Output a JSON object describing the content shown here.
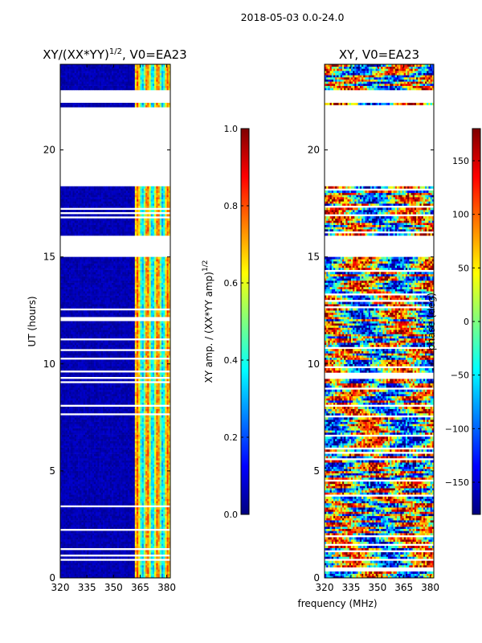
{
  "figure_title": "2018-05-03 0.0-24.0",
  "shared_xlabel": "frequency (MHz)",
  "colors": {
    "jet_stops": [
      "#00007f",
      "#0000ff",
      "#007fff",
      "#00ffff",
      "#7fff7f",
      "#ffff00",
      "#ff7f00",
      "#ff0000",
      "#7f0000"
    ]
  },
  "chart_data": [
    {
      "type": "heatmap",
      "title_main": "XY/(XX*YY)",
      "title_sup": "1/2",
      "title_rest": ", V0=EA23",
      "xlabel": "",
      "ylabel": "UT (hours)",
      "x_range": [
        320,
        382
      ],
      "y_range": [
        0,
        24
      ],
      "x_ticks": [
        "320",
        "335",
        "350",
        "365",
        "380"
      ],
      "x_tick_values": [
        320,
        335,
        350,
        365,
        380
      ],
      "y_ticks": [
        "0",
        "5",
        "10",
        "15",
        "20"
      ],
      "y_tick_values": [
        0,
        5,
        10,
        15,
        20
      ],
      "colorbar": {
        "label_main": "XY amp. / (XX*YY amp)",
        "label_sup": "1/2",
        "range": [
          0.0,
          1.0
        ],
        "ticks": [
          "0.0",
          "0.2",
          "0.4",
          "0.6",
          "0.8",
          "1.0"
        ],
        "tick_values": [
          0.0,
          0.2,
          0.4,
          0.6,
          0.8,
          1.0
        ]
      },
      "data_gaps_ut": [
        [
          18.4,
          22.0
        ],
        [
          15.0,
          16.0
        ],
        [
          22.2,
          22.8
        ]
      ],
      "description": "amplitude near 0 below ~360 MHz, striped 0.3-0.8 between ~362-380 MHz"
    },
    {
      "type": "heatmap",
      "title_main": "XY, V0=EA23",
      "title_sup": "",
      "title_rest": "",
      "xlabel": "",
      "ylabel": "",
      "x_range": [
        320,
        382
      ],
      "y_range": [
        0,
        24
      ],
      "x_ticks": [
        "320",
        "335",
        "350",
        "365",
        "380"
      ],
      "x_tick_values": [
        320,
        335,
        350,
        365,
        380
      ],
      "y_ticks": [
        "0",
        "5",
        "10",
        "15",
        "20"
      ],
      "y_tick_values": [
        0,
        5,
        10,
        15,
        20
      ],
      "colorbar": {
        "label_main": "phase (deg)",
        "label_sup": "",
        "range": [
          -180,
          180
        ],
        "ticks": [
          "−150",
          "−100",
          "−50",
          "0",
          "50",
          "100",
          "150"
        ],
        "tick_values": [
          -150,
          -100,
          -50,
          0,
          50,
          100,
          150
        ]
      },
      "data_gaps_ut": [
        [
          18.4,
          22.0
        ],
        [
          15.0,
          16.0
        ],
        [
          22.2,
          22.8
        ]
      ],
      "description": "phase scattered over full -180 to 180 range"
    }
  ]
}
